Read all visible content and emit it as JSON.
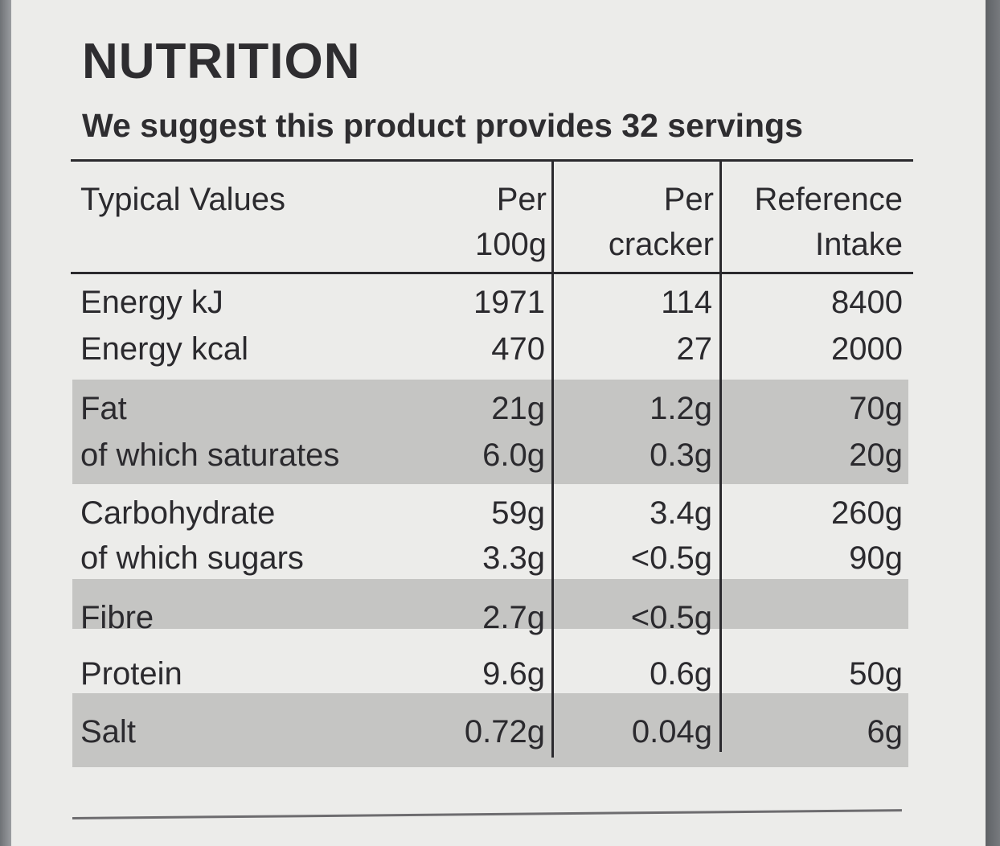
{
  "header": {
    "title": "NUTRITION",
    "subtitle": "We suggest this product provides 32 servings"
  },
  "table": {
    "columns": {
      "typical": "Typical Values",
      "per100_line1": "Per",
      "per100_line2": "100g",
      "percracker_line1": "Per",
      "percracker_line2": "cracker",
      "ri_line1": "Reference",
      "ri_line2": "Intake"
    },
    "rows": [
      {
        "label": "Energy kJ",
        "per100g": "1971",
        "per_cracker": "114",
        "ri": "8400"
      },
      {
        "label": "Energy kcal",
        "per100g": "470",
        "per_cracker": "27",
        "ri": "2000"
      },
      {
        "label": "Fat",
        "per100g": "21g",
        "per_cracker": "1.2g",
        "ri": "70g"
      },
      {
        "label": "of which saturates",
        "per100g": "6.0g",
        "per_cracker": "0.3g",
        "ri": "20g"
      },
      {
        "label": "Carbohydrate",
        "per100g": "59g",
        "per_cracker": "3.4g",
        "ri": "260g"
      },
      {
        "label": "of which sugars",
        "per100g": "3.3g",
        "per_cracker": "<0.5g",
        "ri": "90g"
      },
      {
        "label": "Fibre",
        "per100g": "2.7g",
        "per_cracker": "<0.5g",
        "ri": ""
      },
      {
        "label": "Protein",
        "per100g": "9.6g",
        "per_cracker": "0.6g",
        "ri": "50g"
      },
      {
        "label": "Salt",
        "per100g": "0.72g",
        "per_cracker": "0.04g",
        "ri": "6g"
      }
    ]
  }
}
